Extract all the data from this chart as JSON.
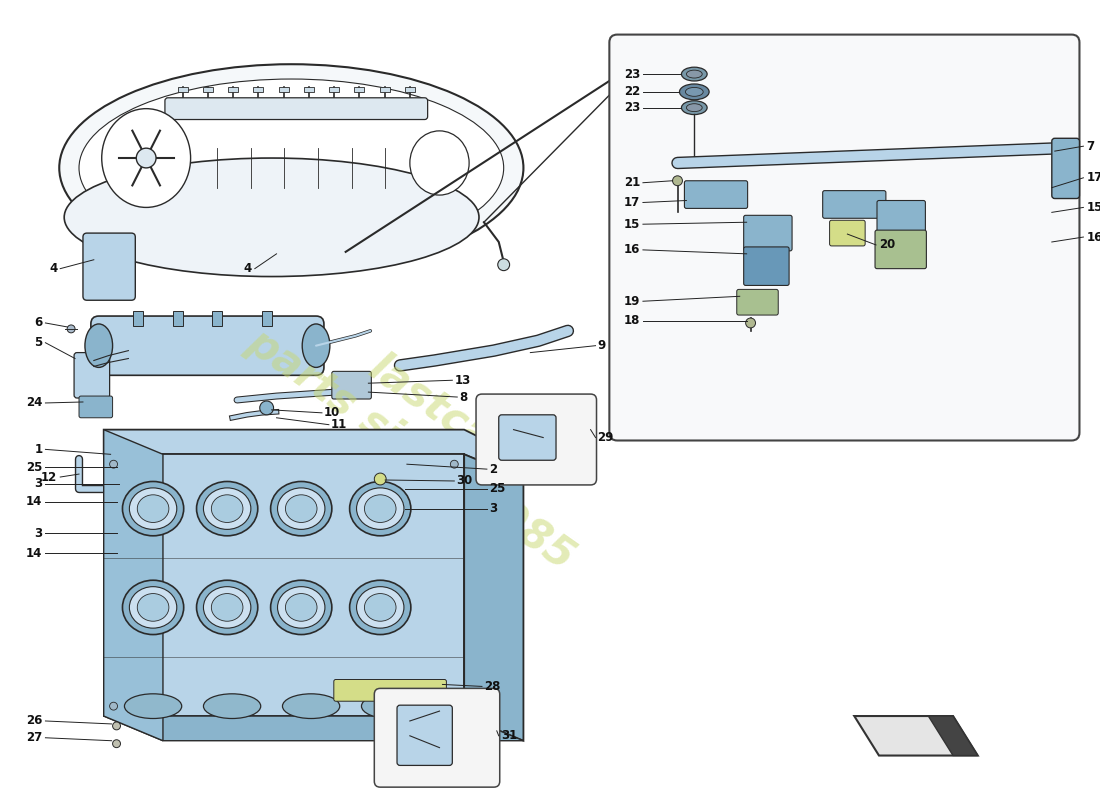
{
  "bg_color": "#ffffff",
  "blue_light": "#b8d4e8",
  "blue_mid": "#8ab4cc",
  "blue_dark": "#6898b8",
  "outline": "#2a2a2a",
  "yellow_green": "#d4dd88",
  "gray_light": "#e8e8e8",
  "watermark_color": "#c8d870",
  "watermark_text": "lastcar\nparts since 1985"
}
